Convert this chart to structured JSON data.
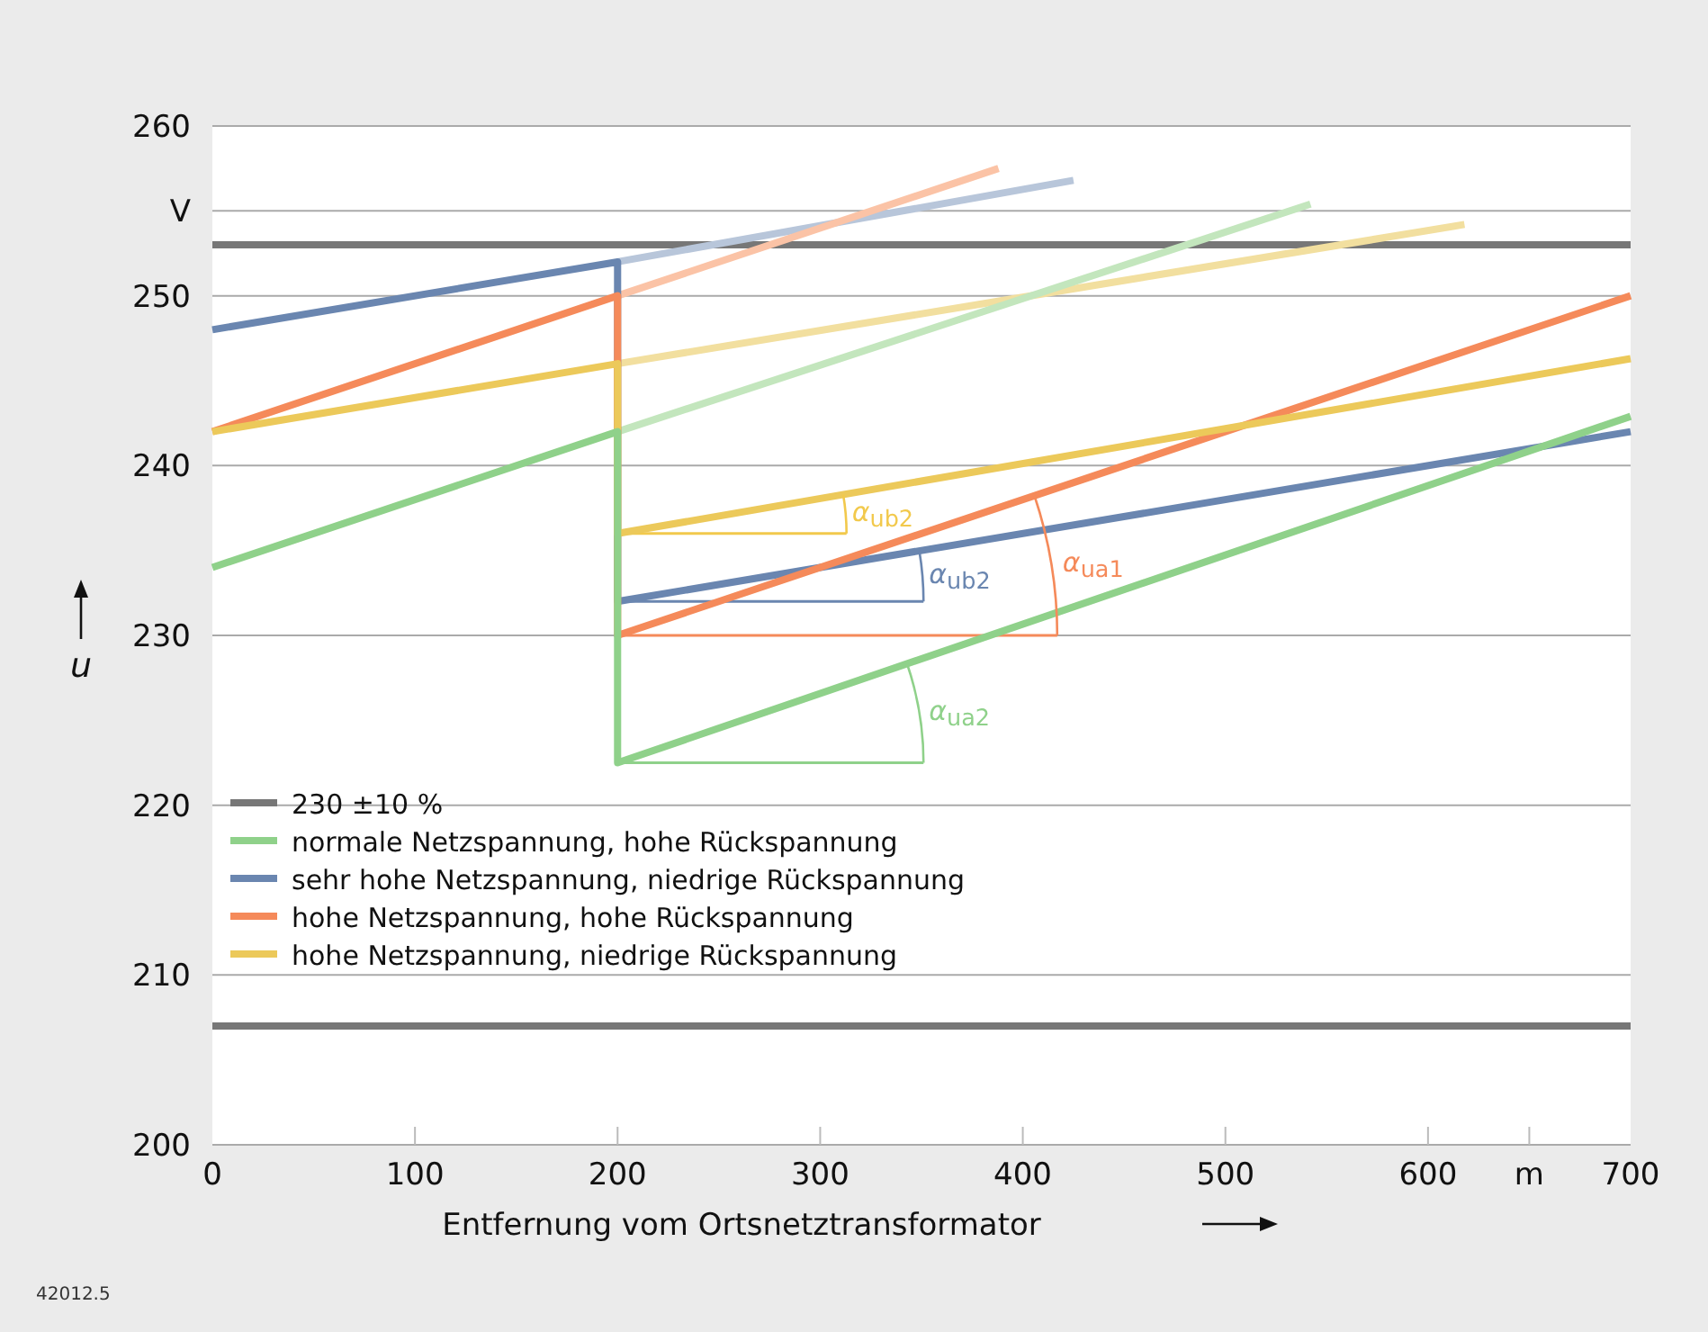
{
  "chart_data": {
    "type": "line",
    "xlabel": "Entfernung vom Ortsnetztransformator",
    "ylabel": "u",
    "xlim": [
      0,
      700
    ],
    "xticks": [
      0,
      100,
      200,
      300,
      400,
      500,
      600,
      {
        "value": 650,
        "label": "m"
      },
      700
    ],
    "ylim": [
      200,
      260
    ],
    "yticks": [
      200,
      210,
      220,
      230,
      240,
      250,
      {
        "value": 255,
        "label": "V"
      },
      260
    ],
    "grid": "y",
    "legend": "bottom left",
    "marker": "none",
    "line_style": "solid",
    "ref_lines": [
      {
        "axis": "y",
        "value": 253,
        "label": null,
        "color": "#777777"
      },
      {
        "axis": "y",
        "value": 207,
        "label": null,
        "color": "#777777"
      }
    ],
    "series": [
      {
        "color": "#b8c6da",
        "x": [
          200,
          425
        ],
        "values": [
          252,
          256.8
        ]
      },
      {
        "color": "#fbc3a6",
        "x": [
          200,
          388
        ],
        "values": [
          250,
          257.5
        ]
      },
      {
        "color": "#f2df9f",
        "x": [
          200,
          618
        ],
        "values": [
          246,
          254.2
        ]
      },
      {
        "color": "#c3e6bd",
        "x": [
          200,
          542
        ],
        "values": [
          242,
          255.4
        ]
      },
      {
        "color": "#f2c94c",
        "x": [
          200,
          313
        ],
        "values": [
          236,
          236
        ]
      },
      {
        "color": "#6a86b0",
        "x": [
          200,
          351
        ],
        "values": [
          232,
          232
        ]
      },
      {
        "color": "#f58a5a",
        "x": [
          200,
          417
        ],
        "values": [
          230,
          230
        ]
      },
      {
        "color": "#8fd18a",
        "x": [
          200,
          351
        ],
        "values": [
          222.5,
          222.5
        ]
      },
      {
        "name": "normale Netzspannung, hohe Rückspannung",
        "color": "#8fd18a",
        "x": [
          0,
          200,
          200,
          700
        ],
        "values": [
          234,
          242,
          222.5,
          242.9
        ]
      },
      {
        "name": "sehr hohe Netzspannung, niedrige Rückspannung",
        "color": "#6a86b0",
        "x": [
          0,
          200,
          200,
          700
        ],
        "values": [
          248,
          252,
          232,
          242
        ]
      },
      {
        "name": "hohe Netzspannung, hohe Rückspannung",
        "color": "#f58a5a",
        "x": [
          0,
          200,
          200,
          700
        ],
        "values": [
          242,
          250,
          230,
          250
        ]
      },
      {
        "name": "hohe Netzspannung, niedrige Rückspannung",
        "color": "#ecc95a",
        "x": [
          0,
          200,
          200,
          700
        ],
        "values": [
          242,
          246,
          236,
          246.3
        ]
      }
    ],
    "legend_title": "230 ±10 %",
    "annotations": [
      "α$_{ub2}$",
      "α$_{ub2}$",
      "α$_{ua1}$",
      "α$_{ua2}$",
      "42012.5"
    ]
  }
}
